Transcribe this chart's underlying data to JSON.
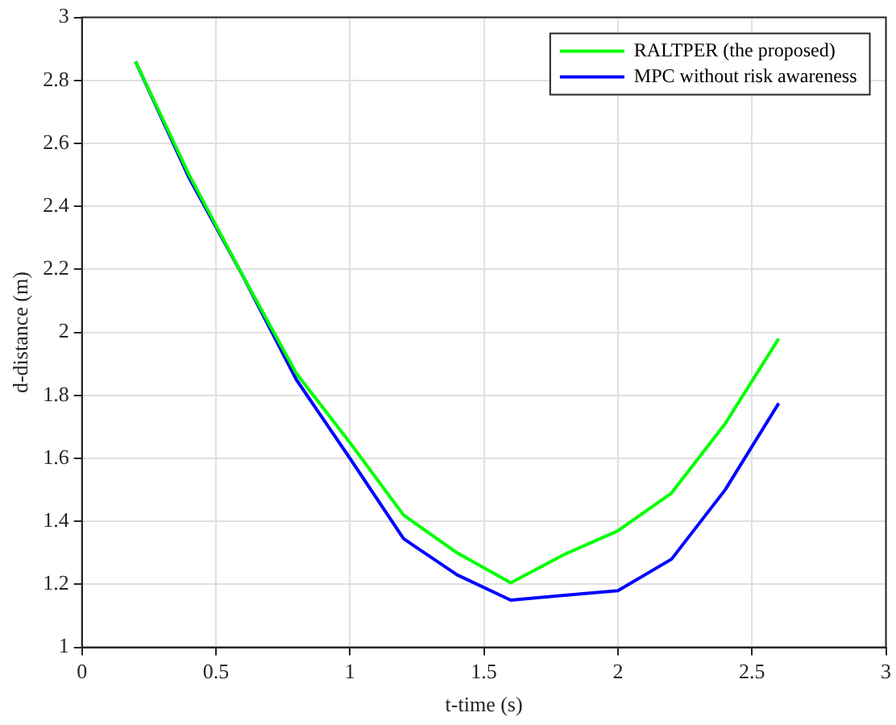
{
  "chart_data": {
    "type": "line",
    "xlabel": "t-time (s)",
    "ylabel": "d-distance (m)",
    "x": [
      0.2,
      0.4,
      0.6,
      0.8,
      1.0,
      1.2,
      1.4,
      1.6,
      1.8,
      2.0,
      2.2,
      2.4,
      2.6
    ],
    "series": [
      {
        "name": "RALTPER (the proposed)",
        "color": "#00ff00",
        "values": [
          2.86,
          2.5,
          2.18,
          1.87,
          1.65,
          1.42,
          1.3,
          1.205,
          1.295,
          1.37,
          1.49,
          1.71,
          1.98
        ]
      },
      {
        "name": "MPC without risk awareness",
        "color": "#0000ff",
        "values": [
          2.86,
          2.49,
          2.18,
          1.85,
          1.6,
          1.345,
          1.23,
          1.15,
          1.165,
          1.18,
          1.28,
          1.5,
          1.775
        ]
      }
    ],
    "xlim": [
      0,
      3
    ],
    "xticks": [
      0,
      0.5,
      1,
      1.5,
      2,
      2.5,
      3
    ],
    "ylim": [
      1,
      3
    ],
    "yticks": [
      1,
      1.2,
      1.4,
      1.6,
      1.8,
      2,
      2.2,
      2.4,
      2.6,
      2.8,
      3
    ],
    "grid": true,
    "legend": "top right",
    "marker": "none",
    "line_style": "solid"
  }
}
